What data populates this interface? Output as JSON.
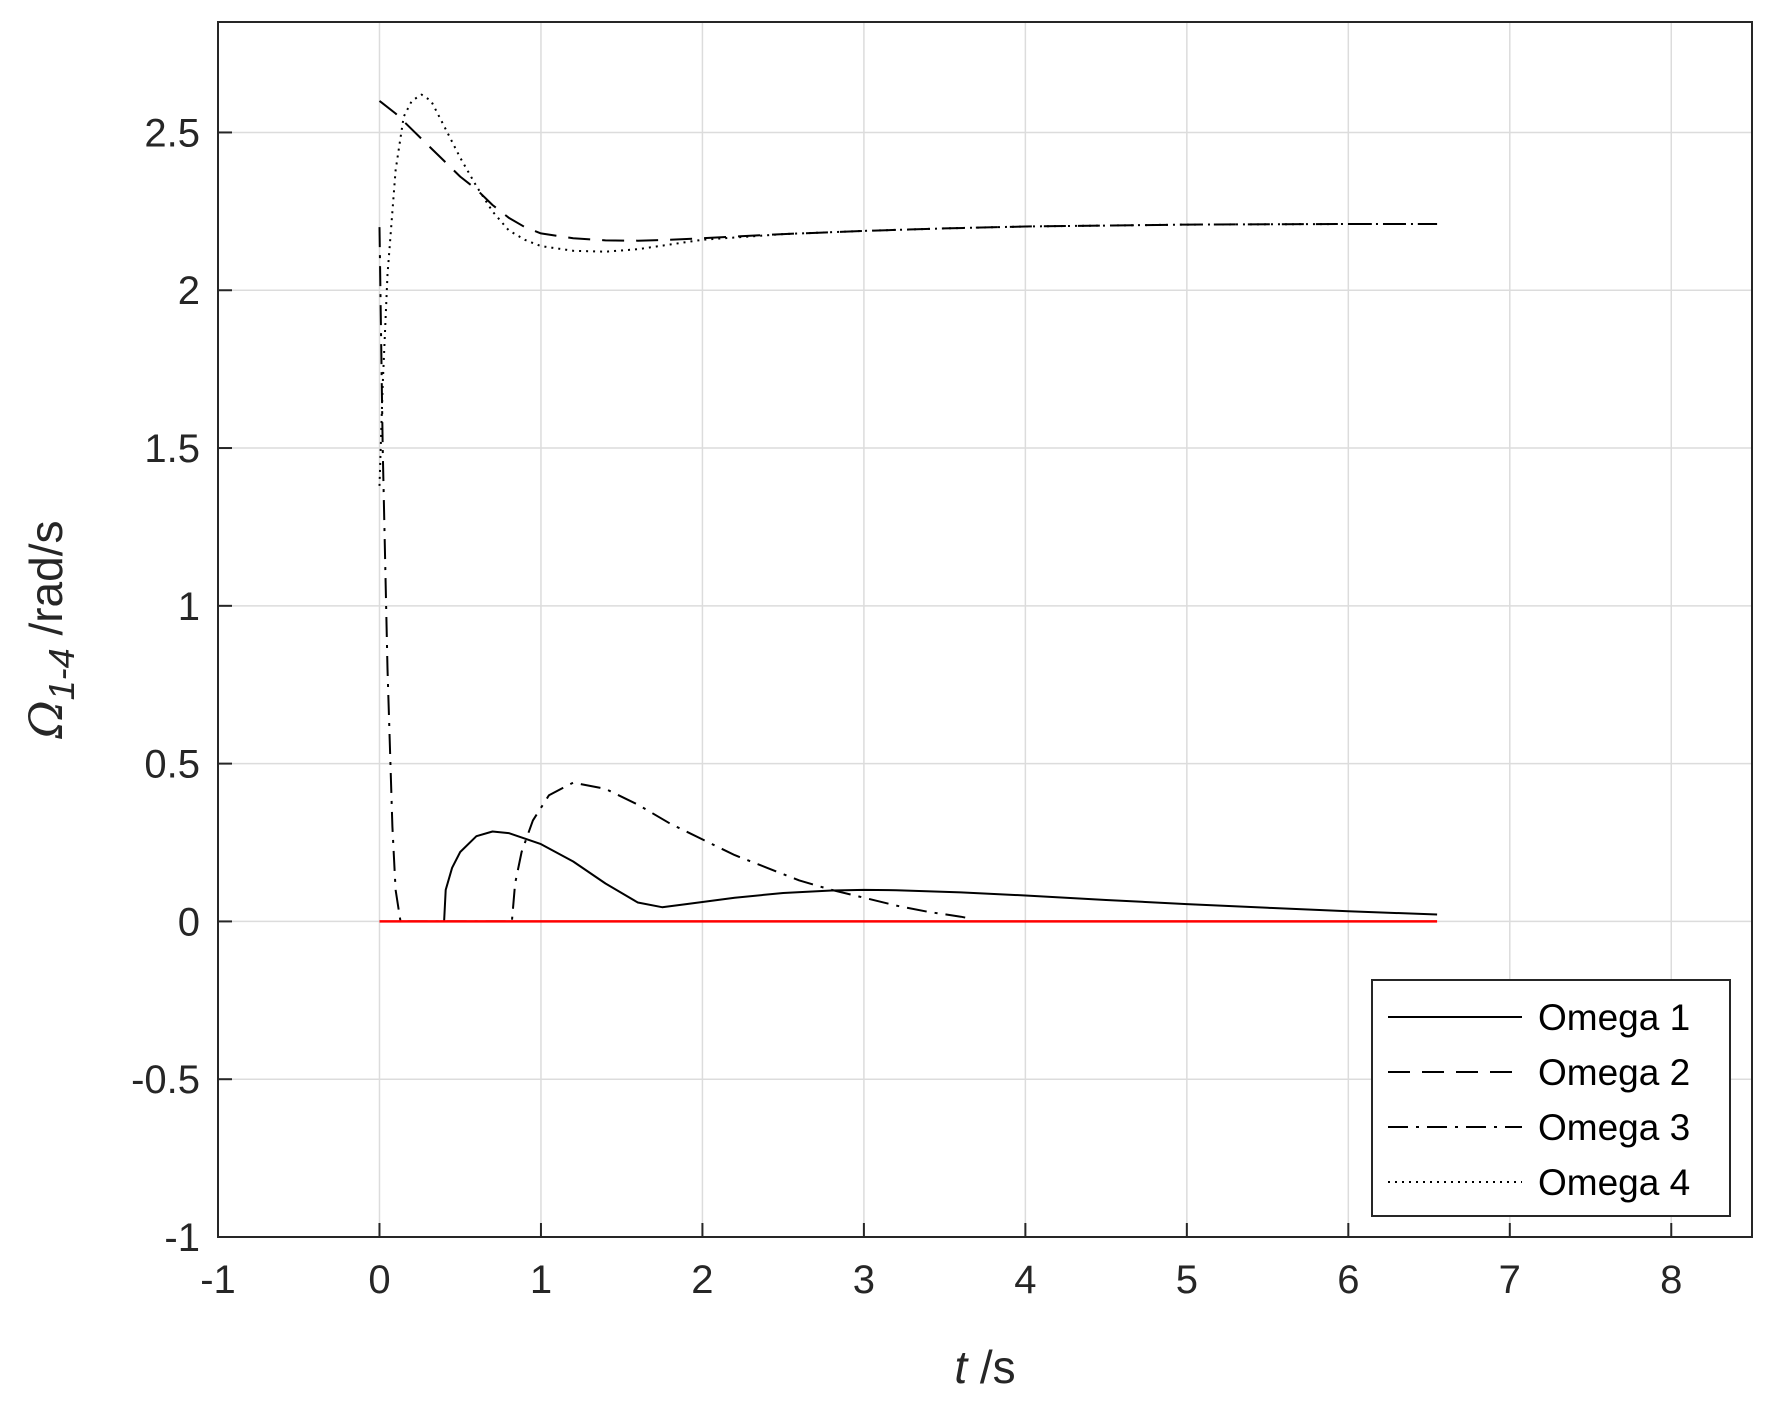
{
  "chart_data": {
    "type": "line",
    "title": "",
    "xlabel": {
      "italic": "t",
      "rest": " /s"
    },
    "ylabel": {
      "symbol": "Ω",
      "subscript": "1-4",
      "rest": " /rad/s"
    },
    "xlim": [
      -1,
      8.5
    ],
    "ylim": [
      -1,
      2.85
    ],
    "xticks": [
      -1,
      0,
      1,
      2,
      3,
      4,
      5,
      6,
      7,
      8
    ],
    "xtick_labels": [
      "-1",
      "0",
      "1",
      "2",
      "3",
      "4",
      "5",
      "6",
      "7",
      "8"
    ],
    "yticks": [
      -1,
      -0.5,
      0,
      0.5,
      1,
      1.5,
      2,
      2.5
    ],
    "ytick_labels": [
      "-1",
      "-0.5",
      "0",
      "0.5",
      "1",
      "1.5",
      "2",
      "2.5"
    ],
    "grid": true,
    "legend_position": "bottom-right",
    "series": [
      {
        "name": "Omega 1",
        "style": "solid",
        "color": "#000000",
        "points": [
          [
            0.4,
            0
          ],
          [
            0.41,
            0.1
          ],
          [
            0.45,
            0.17
          ],
          [
            0.5,
            0.22
          ],
          [
            0.6,
            0.27
          ],
          [
            0.7,
            0.285
          ],
          [
            0.8,
            0.28
          ],
          [
            1.0,
            0.245
          ],
          [
            1.2,
            0.19
          ],
          [
            1.4,
            0.12
          ],
          [
            1.6,
            0.06
          ],
          [
            1.75,
            0.045
          ],
          [
            1.9,
            0.055
          ],
          [
            2.2,
            0.075
          ],
          [
            2.5,
            0.09
          ],
          [
            2.8,
            0.098
          ],
          [
            3.0,
            0.1
          ],
          [
            3.2,
            0.099
          ],
          [
            3.6,
            0.092
          ],
          [
            4.0,
            0.082
          ],
          [
            4.5,
            0.068
          ],
          [
            5.0,
            0.055
          ],
          [
            5.5,
            0.043
          ],
          [
            6.0,
            0.032
          ],
          [
            6.55,
            0.022
          ]
        ]
      },
      {
        "name": "Omega 2",
        "style": "dashed",
        "color": "#000000",
        "points": [
          [
            0.0,
            2.6
          ],
          [
            0.1,
            2.56
          ],
          [
            0.2,
            2.51
          ],
          [
            0.3,
            2.46
          ],
          [
            0.4,
            2.41
          ],
          [
            0.5,
            2.36
          ],
          [
            0.6,
            2.32
          ],
          [
            0.7,
            2.27
          ],
          [
            0.8,
            2.23
          ],
          [
            0.9,
            2.2
          ],
          [
            1.0,
            2.18
          ],
          [
            1.2,
            2.165
          ],
          [
            1.4,
            2.158
          ],
          [
            1.6,
            2.157
          ],
          [
            1.8,
            2.16
          ],
          [
            2.0,
            2.165
          ],
          [
            2.5,
            2.178
          ],
          [
            3.0,
            2.188
          ],
          [
            3.5,
            2.196
          ],
          [
            4.0,
            2.202
          ],
          [
            5.0,
            2.208
          ],
          [
            6.0,
            2.21
          ],
          [
            6.55,
            2.21
          ]
        ]
      },
      {
        "name": "Omega 3",
        "style": "dashdot",
        "color": "#000000",
        "points": [
          [
            0.0,
            2.2
          ],
          [
            0.02,
            1.5
          ],
          [
            0.05,
            0.8
          ],
          [
            0.08,
            0.3
          ],
          [
            0.1,
            0.1
          ],
          [
            0.13,
            0
          ],
          [
            0.82,
            0
          ],
          [
            0.84,
            0.12
          ],
          [
            0.88,
            0.22
          ],
          [
            0.95,
            0.32
          ],
          [
            1.05,
            0.4
          ],
          [
            1.2,
            0.44
          ],
          [
            1.4,
            0.42
          ],
          [
            1.6,
            0.37
          ],
          [
            1.8,
            0.31
          ],
          [
            2.0,
            0.26
          ],
          [
            2.2,
            0.21
          ],
          [
            2.4,
            0.17
          ],
          [
            2.6,
            0.13
          ],
          [
            2.8,
            0.1
          ],
          [
            3.0,
            0.075
          ],
          [
            3.2,
            0.05
          ],
          [
            3.4,
            0.03
          ],
          [
            3.6,
            0.015
          ],
          [
            3.65,
            0.01
          ]
        ]
      },
      {
        "name": "Omega 4",
        "style": "dotted",
        "color": "#000000",
        "points": [
          [
            0.0,
            1.38
          ],
          [
            0.02,
            1.7
          ],
          [
            0.05,
            2.05
          ],
          [
            0.1,
            2.38
          ],
          [
            0.15,
            2.55
          ],
          [
            0.2,
            2.6
          ],
          [
            0.26,
            2.62
          ],
          [
            0.32,
            2.6
          ],
          [
            0.4,
            2.52
          ],
          [
            0.5,
            2.42
          ],
          [
            0.6,
            2.33
          ],
          [
            0.7,
            2.25
          ],
          [
            0.8,
            2.19
          ],
          [
            0.9,
            2.16
          ],
          [
            1.0,
            2.14
          ],
          [
            1.2,
            2.125
          ],
          [
            1.4,
            2.122
          ],
          [
            1.6,
            2.13
          ],
          [
            1.8,
            2.145
          ],
          [
            2.0,
            2.16
          ],
          [
            2.5,
            2.178
          ],
          [
            3.0,
            2.188
          ],
          [
            3.5,
            2.196
          ],
          [
            4.0,
            2.202
          ],
          [
            5.0,
            2.208
          ],
          [
            6.0,
            2.21
          ],
          [
            6.55,
            2.21
          ]
        ]
      },
      {
        "name": "",
        "style": "solid",
        "color": "#ff0000",
        "points": [
          [
            0.0,
            0
          ],
          [
            6.55,
            0
          ]
        ]
      }
    ]
  }
}
